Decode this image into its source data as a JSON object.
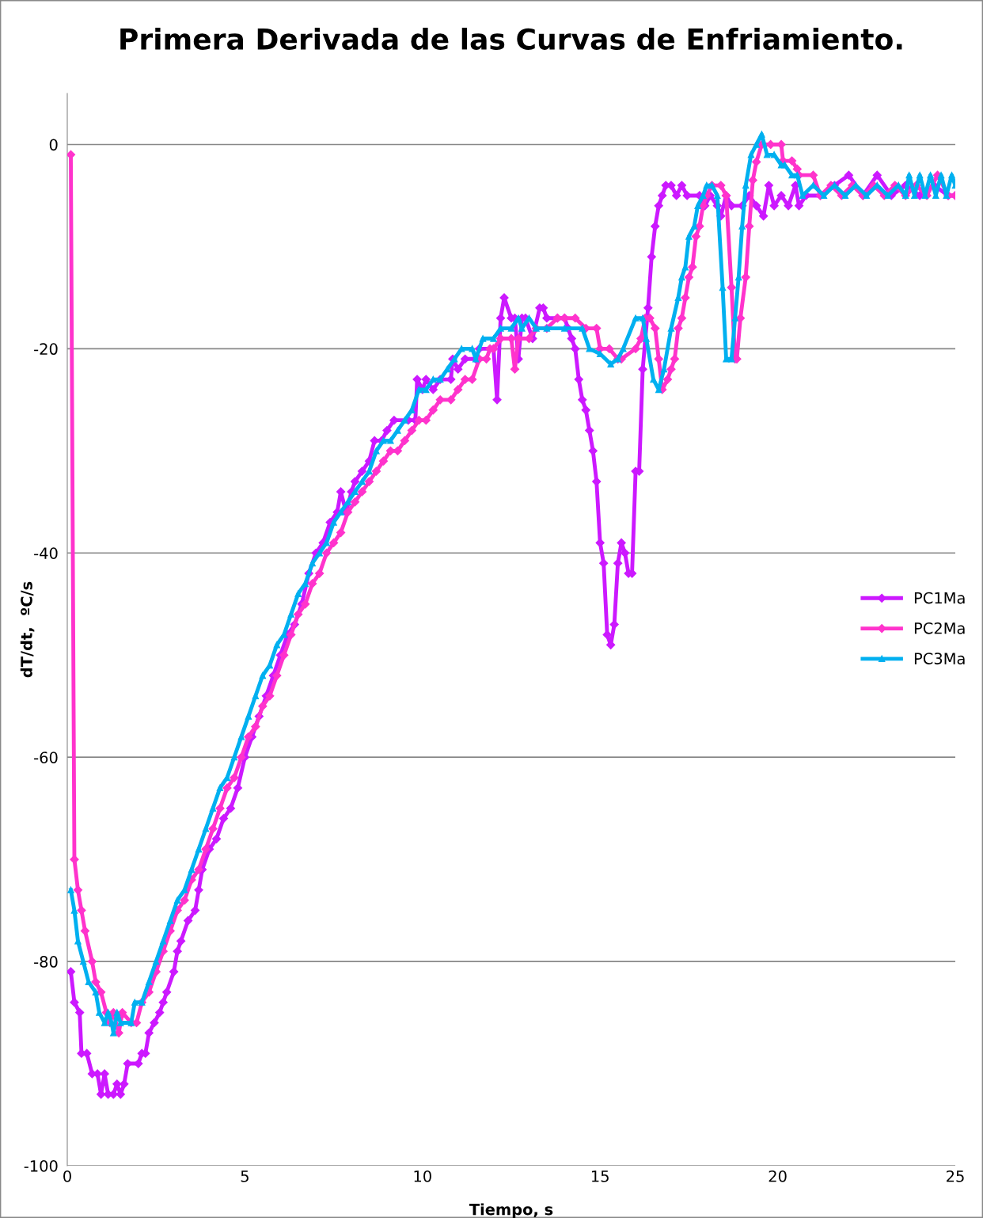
{
  "chart_data": {
    "type": "line",
    "title": "Primera Derivada de las Curvas de Enfriamiento.",
    "xlabel": "Tiempo, s",
    "ylabel": "dT/dt,  ºC/s",
    "xlim": [
      0,
      25
    ],
    "xticks": [
      0,
      5,
      10,
      15,
      20,
      25
    ],
    "ylim": [
      -100,
      5
    ],
    "yticks": [
      -100,
      -80,
      -60,
      -40,
      -20,
      0
    ],
    "grid": "y",
    "legend": "right",
    "line_style": "solid",
    "series": [
      {
        "name": "PC1Ma",
        "color": "#cc19ff",
        "marker": "diamond",
        "x": [
          0.1,
          0.2,
          0.35,
          0.4,
          0.55,
          0.7,
          0.85,
          0.95,
          1.05,
          1.15,
          1.3,
          1.4,
          1.5,
          1.6,
          1.7,
          2.0,
          2.1,
          2.2,
          2.3,
          2.45,
          2.6,
          2.7,
          2.8,
          3.0,
          3.1,
          3.2,
          3.4,
          3.6,
          3.7,
          3.8,
          4.0,
          4.2,
          4.4,
          4.6,
          4.8,
          5.0,
          5.2,
          5.4,
          5.6,
          5.8,
          6.0,
          6.2,
          6.4,
          6.6,
          6.8,
          7.0,
          7.2,
          7.4,
          7.6,
          7.7,
          7.85,
          8.0,
          8.1,
          8.3,
          8.5,
          8.65,
          8.85,
          9.0,
          9.2,
          9.6,
          9.8,
          9.85,
          10.0,
          10.1,
          10.3,
          10.5,
          10.8,
          10.85,
          11.0,
          11.2,
          11.5,
          11.6,
          12.0,
          12.1,
          12.2,
          12.3,
          12.5,
          12.6,
          12.7,
          12.8,
          12.9,
          13.1,
          13.3,
          13.4,
          13.5,
          13.8,
          14.0,
          14.1,
          14.2,
          14.3,
          14.4,
          14.5,
          14.6,
          14.7,
          14.8,
          14.9,
          15.0,
          15.1,
          15.2,
          15.3,
          15.4,
          15.5,
          15.6,
          15.7,
          15.8,
          15.9,
          16.0,
          16.1,
          16.2,
          16.35,
          16.45,
          16.55,
          16.65,
          16.75,
          16.85,
          17.0,
          17.15,
          17.3,
          17.45,
          17.8,
          17.95,
          18.1,
          18.3,
          18.4,
          18.55,
          18.7,
          19.0,
          19.2,
          19.4,
          19.6,
          19.75,
          19.9,
          20.1,
          20.3,
          20.5,
          20.6,
          20.8,
          21.2,
          21.6,
          22.0,
          22.4,
          22.8,
          23.2,
          23.6,
          24.0,
          24.4,
          24.8,
          25.0
        ],
        "values": [
          -81,
          -84,
          -85,
          -89,
          -89,
          -91,
          -91,
          -93,
          -91,
          -93,
          -93,
          -92,
          -93,
          -92,
          -90,
          -90,
          -89,
          -89,
          -87,
          -86,
          -85,
          -84,
          -83,
          -81,
          -79,
          -78,
          -76,
          -75,
          -73,
          -71,
          -69,
          -68,
          -66,
          -65,
          -63,
          -60,
          -58,
          -56,
          -54,
          -52,
          -50,
          -48,
          -47,
          -45,
          -42,
          -40,
          -39,
          -37,
          -36,
          -34,
          -36,
          -34,
          -33,
          -32,
          -31,
          -29,
          -29,
          -28,
          -27,
          -27,
          -27,
          -23,
          -24,
          -23,
          -24,
          -23,
          -23,
          -21,
          -22,
          -21,
          -21,
          -20,
          -20,
          -25,
          -17,
          -15,
          -17,
          -17,
          -21,
          -17,
          -17,
          -19,
          -16,
          -16,
          -17,
          -17,
          -17,
          -18,
          -19,
          -20,
          -23,
          -25,
          -26,
          -28,
          -30,
          -33,
          -39,
          -41,
          -48,
          -49,
          -47,
          -41,
          -39,
          -40,
          -42,
          -42,
          -32,
          -32,
          -22,
          -16,
          -11,
          -8,
          -6,
          -5,
          -4,
          -4,
          -5,
          -4,
          -5,
          -5,
          -6,
          -5,
          -6,
          -7,
          -5,
          -6,
          -6,
          -5,
          -6,
          -7,
          -4,
          -6,
          -5,
          -6,
          -4,
          -6,
          -5,
          -5,
          -4,
          -3,
          -5,
          -3,
          -5,
          -4,
          -5,
          -4,
          -5,
          -5
        ]
      },
      {
        "name": "PC2Ma",
        "color": "#ff33cc",
        "marker": "diamond",
        "x": [
          0.1,
          0.2,
          0.3,
          0.4,
          0.5,
          0.7,
          0.8,
          0.95,
          1.1,
          1.2,
          1.3,
          1.45,
          1.55,
          1.8,
          1.95,
          2.1,
          2.3,
          2.5,
          2.7,
          2.9,
          3.1,
          3.3,
          3.5,
          3.7,
          3.9,
          4.1,
          4.3,
          4.5,
          4.7,
          4.9,
          5.1,
          5.3,
          5.5,
          5.7,
          5.9,
          6.1,
          6.3,
          6.5,
          6.7,
          6.9,
          7.1,
          7.3,
          7.5,
          7.7,
          7.9,
          8.1,
          8.3,
          8.5,
          8.7,
          8.9,
          9.1,
          9.3,
          9.5,
          9.7,
          9.9,
          10.1,
          10.3,
          10.5,
          10.8,
          11.0,
          11.2,
          11.4,
          11.6,
          11.8,
          11.9,
          12.0,
          12.2,
          12.5,
          12.6,
          12.7,
          13.0,
          13.2,
          13.5,
          13.8,
          14.0,
          14.3,
          14.6,
          14.9,
          15.0,
          15.26,
          15.5,
          15.6,
          16.0,
          16.15,
          16.27,
          16.4,
          16.55,
          16.65,
          16.75,
          16.9,
          17.0,
          17.1,
          17.2,
          17.3,
          17.4,
          17.5,
          17.6,
          17.7,
          17.8,
          17.9,
          18.0,
          18.15,
          18.4,
          18.55,
          18.7,
          18.8,
          18.85,
          18.95,
          19.1,
          19.2,
          19.3,
          19.4,
          19.55,
          19.8,
          20.1,
          20.15,
          20.4,
          20.55,
          20.6,
          21.0,
          21.2,
          21.5,
          21.8,
          22.1,
          22.4,
          22.7,
          23.0,
          23.3,
          23.6,
          23.9,
          24.2,
          24.5,
          24.8,
          25.0
        ],
        "values": [
          -1,
          -70,
          -73,
          -75,
          -77,
          -80,
          -82,
          -83,
          -85,
          -86,
          -85,
          -87,
          -85,
          -86,
          -86,
          -84,
          -83,
          -81,
          -79,
          -77,
          -75,
          -74,
          -72,
          -71,
          -69,
          -67,
          -65,
          -63,
          -62,
          -60,
          -58,
          -57,
          -55,
          -54,
          -52,
          -50,
          -48,
          -46,
          -45,
          -43,
          -42,
          -40,
          -39,
          -38,
          -36,
          -35,
          -34,
          -33,
          -32,
          -31,
          -30,
          -30,
          -29,
          -28,
          -27,
          -27,
          -26,
          -25,
          -25,
          -24,
          -23,
          -23,
          -21,
          -21,
          -20,
          -20,
          -19,
          -19,
          -22,
          -19,
          -19,
          -18,
          -18,
          -17,
          -17,
          -17,
          -18,
          -18,
          -20,
          -20,
          -21,
          -21,
          -20,
          -19,
          -17,
          -17,
          -18,
          -21,
          -24,
          -23,
          -22,
          -21,
          -18,
          -17,
          -15,
          -13,
          -12,
          -9,
          -8,
          -6,
          -5,
          -4,
          -4,
          -5,
          -14,
          -21,
          -21,
          -17,
          -13,
          -8,
          -3.5,
          -1.7,
          0,
          0,
          0,
          -1.6,
          -1.6,
          -2.4,
          -3,
          -3,
          -5,
          -4,
          -5,
          -4,
          -5,
          -4,
          -5,
          -4,
          -5,
          -4,
          -5,
          -3,
          -5,
          -5
        ]
      },
      {
        "name": "PC3Ma",
        "color": "#00b0f0",
        "marker": "triangle",
        "x": [
          0.1,
          0.2,
          0.3,
          0.45,
          0.6,
          0.8,
          0.9,
          1.05,
          1.15,
          1.25,
          1.3,
          1.4,
          1.5,
          1.8,
          1.9,
          2.1,
          2.3,
          2.5,
          2.7,
          2.9,
          3.1,
          3.3,
          3.5,
          3.7,
          3.9,
          4.1,
          4.3,
          4.5,
          4.7,
          4.9,
          5.1,
          5.3,
          5.5,
          5.7,
          5.9,
          6.1,
          6.3,
          6.5,
          6.7,
          6.9,
          7.1,
          7.3,
          7.5,
          7.7,
          7.9,
          8.1,
          8.3,
          8.5,
          8.7,
          8.9,
          9.1,
          9.3,
          9.5,
          9.7,
          9.9,
          10.1,
          10.3,
          10.5,
          10.7,
          10.9,
          11.1,
          11.4,
          11.5,
          11.7,
          12.0,
          12.2,
          12.5,
          12.7,
          12.8,
          13.0,
          13.2,
          13.5,
          14.0,
          14.5,
          14.7,
          15.0,
          15.3,
          15.5,
          15.65,
          16.0,
          16.2,
          16.3,
          16.5,
          16.65,
          16.8,
          17.0,
          17.2,
          17.3,
          17.4,
          17.5,
          17.65,
          17.75,
          17.9,
          18.0,
          18.15,
          18.3,
          18.45,
          18.55,
          18.7,
          18.8,
          18.9,
          19.0,
          19.1,
          19.25,
          19.4,
          19.55,
          19.7,
          19.9,
          20.1,
          20.2,
          20.4,
          20.55,
          20.7,
          21.0,
          21.3,
          21.6,
          21.9,
          22.2,
          22.5,
          22.8,
          23.1,
          23.4,
          23.6,
          23.7,
          23.85,
          24.0,
          24.15,
          24.3,
          24.45,
          24.6,
          24.75,
          24.9,
          25.0
        ],
        "values": [
          -73,
          -75,
          -78,
          -80,
          -82,
          -83,
          -85,
          -86,
          -85,
          -86,
          -87,
          -85,
          -86,
          -86,
          -84,
          -84,
          -82,
          -80,
          -78,
          -76,
          -74,
          -73,
          -71,
          -69,
          -67,
          -65,
          -63,
          -62,
          -60,
          -58,
          -56,
          -54,
          -52,
          -51,
          -49,
          -48,
          -46,
          -44,
          -43,
          -41,
          -40,
          -39,
          -37,
          -36,
          -35,
          -34,
          -33,
          -32,
          -30,
          -29,
          -29,
          -28,
          -27,
          -26,
          -24,
          -24,
          -23,
          -23,
          -22,
          -21,
          -20,
          -20,
          -21,
          -19,
          -19,
          -18,
          -18,
          -17,
          -18,
          -17,
          -18,
          -18,
          -18,
          -18,
          -20,
          -20.5,
          -21.5,
          -21,
          -20,
          -17,
          -17,
          -19,
          -23,
          -24,
          -22,
          -18,
          -15,
          -13,
          -12,
          -9,
          -8,
          -6,
          -5,
          -4,
          -4,
          -5,
          -14,
          -21,
          -21,
          -17,
          -13,
          -8,
          -4,
          -1,
          0,
          1,
          -1,
          -1,
          -2,
          -2,
          -3,
          -3,
          -5,
          -4,
          -5,
          -4,
          -5,
          -4,
          -5,
          -4,
          -5,
          -4,
          -5,
          -3,
          -5,
          -3,
          -5,
          -3,
          -5,
          -3,
          -5,
          -3,
          -4
        ]
      }
    ]
  }
}
